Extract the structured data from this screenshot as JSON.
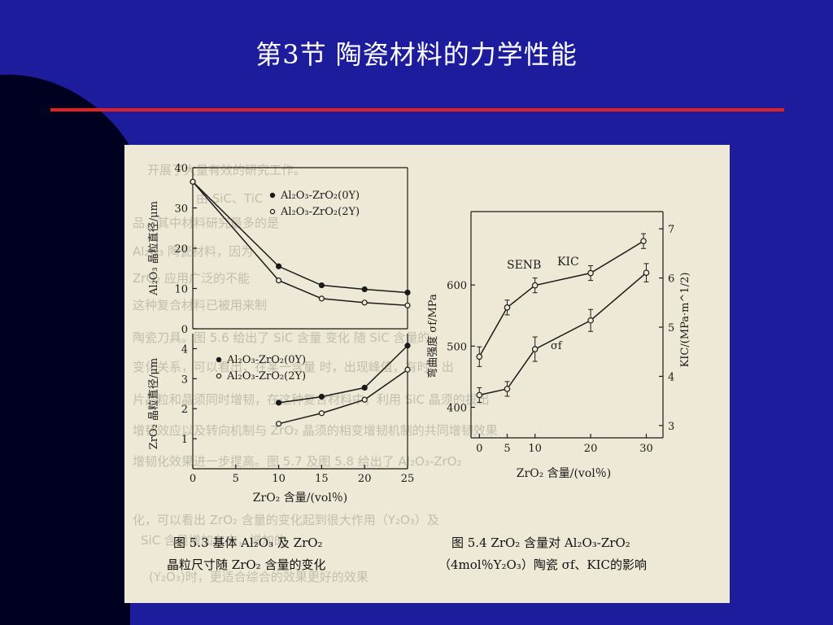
{
  "slide": {
    "title": "第3节    陶瓷材料的力学性能",
    "colors": {
      "background": "#1c1c9c",
      "corner": "#000020",
      "rule": "#e32020",
      "panel": "#ede9d6"
    }
  },
  "figure": {
    "caption_left": [
      "图 5.3    基体 Al₂O₃ 及 ZrO₂",
      "晶粒尺寸随 ZrO₂ 含量的变化"
    ],
    "caption_right": [
      "图 5.4    ZrO₂ 含量对 Al₂O₃-ZrO₂",
      "（4mol％Y₂O₃）陶瓷 σf、KIC的影响"
    ],
    "bleed_text": [
      "开展了大量有效的研究工作。",
      "由 SiC、TiC",
      "品，其中材料研究最多的是",
      "Al₂O₃ 陶瓷材料，因为",
      "ZrO₂ 应用广泛的不能",
      "这种复合材料已被用来制",
      "陶瓷刀具。图 5.6 给出了 SiC 含量 变化 随 SiC 含量的",
      "变化关系，可以看出，在某一含量 时，出现峰值，有时，出",
      "片晶粒和晶须同时增韧，在这种复合材料中，利用 SiC 晶须的拔出",
      "增韧效应以及转向机制与 ZrO₂ 晶须的相变增韧机制的共同增韧效果",
      "增韧化效果进一步提高。图 5.7 及图 5.8 给出了 Al₂O₃-ZrO₂",
      "化，可以看出 ZrO₂ 含量的变化起到很大作用（Y₂O₃）及",
      "SiC 含量增加在内，增加的",
      "(Y₂O₃)时，更适合综合的效果更好的效果"
    ]
  },
  "chart_data": [
    {
      "type": "line",
      "title": "",
      "xlabel": "",
      "ylabel": "Al₂O₃ 晶粒直径/μm",
      "x": [
        0,
        10,
        15,
        20,
        25
      ],
      "xlim": [
        0,
        25
      ],
      "ylim": [
        0,
        40
      ],
      "yticks": [
        0,
        10,
        20,
        30,
        40
      ],
      "legend_position": "top-right",
      "series": [
        {
          "name": "Al₂O₃-ZrO₂(0Y)",
          "marker": "filled-circle",
          "values": [
            36.5,
            15.5,
            10.8,
            9.8,
            9.0
          ]
        },
        {
          "name": "Al₂O₃-ZrO₂(2Y)",
          "marker": "open-circle",
          "values": [
            36.5,
            12.0,
            7.5,
            6.5,
            5.8
          ]
        }
      ]
    },
    {
      "type": "line",
      "title": "",
      "xlabel": "ZrO₂ 含量/(vol％)",
      "ylabel": "ZrO₂ 晶粒直径/μm",
      "x": [
        10,
        15,
        20,
        25
      ],
      "xlim": [
        0,
        25
      ],
      "xticks": [
        0,
        5,
        10,
        15,
        20,
        25
      ],
      "ylim": [
        0,
        4.5
      ],
      "yticks": [
        1,
        2,
        3,
        4
      ],
      "legend_position": "top-left",
      "series": [
        {
          "name": "Al₂O₃-ZrO₂(0Y)",
          "marker": "filled-circle",
          "values": [
            2.2,
            2.4,
            2.7,
            4.1
          ]
        },
        {
          "name": "Al₂O₃-ZrO₂(2Y)",
          "marker": "open-circle",
          "values": [
            1.5,
            1.85,
            2.3,
            3.3
          ]
        }
      ]
    },
    {
      "type": "line",
      "title": "",
      "xlabel": "ZrO₂ 含量/(vol％)",
      "ylabel": "弯曲强度 σf/MPa",
      "y2label": "KIC/(MPa·m^1/2)",
      "xticks": [
        0,
        5,
        10,
        20,
        30
      ],
      "xlim": [
        -1.5,
        33
      ],
      "ylim": [
        350,
        720
      ],
      "yticks": [
        400,
        500,
        600
      ],
      "y2lim": [
        2.75,
        7.35
      ],
      "y2ticks": [
        3,
        4,
        5,
        6,
        7
      ],
      "annotations": [
        "SENB",
        "KIC",
        "σf"
      ],
      "series": [
        {
          "name": "KIC",
          "axis": "right",
          "marker": "open-circle-errorbar",
          "x": [
            0,
            5,
            10,
            20,
            29.5
          ],
          "values": [
            4.4,
            5.4,
            5.85,
            6.1,
            6.75
          ],
          "errors": [
            0.2,
            0.15,
            0.15,
            0.15,
            0.15
          ]
        },
        {
          "name": "σf",
          "axis": "left",
          "marker": "open-circle-errorbar",
          "x": [
            0,
            5,
            10,
            20,
            30
          ],
          "values": [
            420,
            430,
            495,
            542,
            620
          ],
          "errors": [
            12,
            12,
            20,
            18,
            15
          ]
        }
      ]
    }
  ]
}
